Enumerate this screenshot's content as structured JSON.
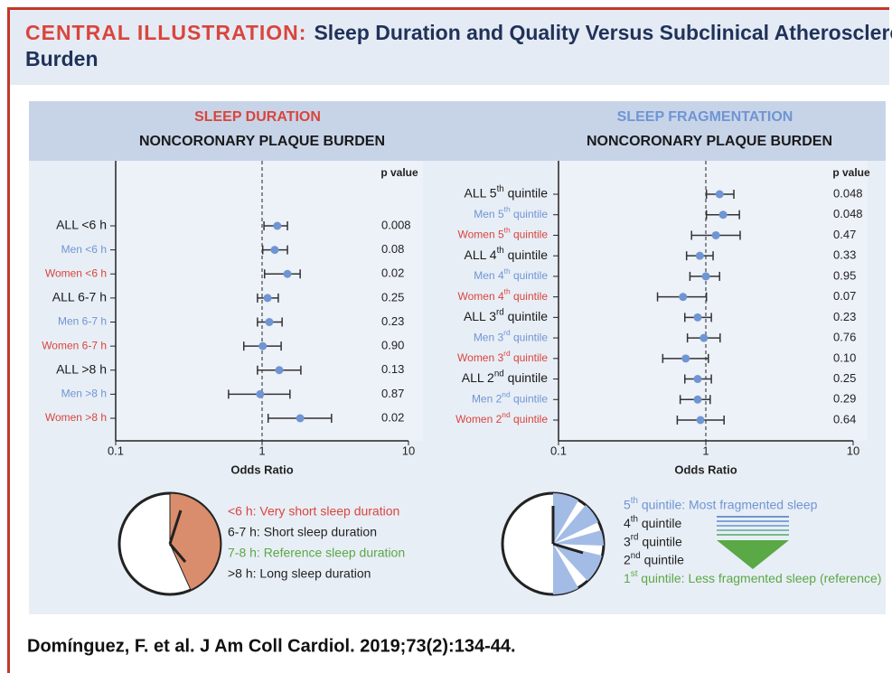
{
  "header": {
    "label": "CENTRAL ILLUSTRATION:",
    "title": "Sleep Duration and Quality Versus Subclinical Atherosclerotic Burden"
  },
  "chart_data": [
    {
      "type": "forest",
      "title": "SLEEP DURATION",
      "subtitle": "NONCORONARY PLAQUE BURDEN",
      "title_color": "#d9453c",
      "categories": [
        "ALL <6 h",
        "Men <6 h",
        "Women <6 h",
        "ALL 6-7 h",
        "Men 6-7 h",
        "Women 6-7 h",
        "ALL >8 h",
        "Men >8 h",
        "Women >8 h"
      ],
      "values": [
        1.27,
        1.22,
        1.49,
        1.09,
        1.12,
        1.01,
        1.31,
        0.97,
        1.82
      ],
      "ci_low": [
        1.03,
        1.01,
        1.04,
        0.93,
        0.93,
        0.75,
        0.93,
        0.59,
        1.1
      ],
      "ci_high": [
        1.49,
        1.49,
        1.82,
        1.29,
        1.37,
        1.35,
        1.84,
        1.55,
        2.98
      ],
      "p_value_title": "p value",
      "p_values": [
        "0.008",
        "0.08",
        "0.02",
        "0.25",
        "0.23",
        "0.90",
        "0.13",
        "0.87",
        "0.02"
      ],
      "xlabel": "Odds Ratio",
      "xscale": "log",
      "xlim": [
        0.1,
        10
      ],
      "xticks": [
        0.1,
        1,
        10
      ],
      "reference_line": 1,
      "color": "#6f95d3",
      "legend": [
        {
          "text": "<6 h: Very short sleep duration",
          "color": "#d9453c"
        },
        {
          "text": "6-7 h: Short sleep duration",
          "color": "#222222"
        },
        {
          "text": "7-8 h: Reference sleep duration",
          "color": "#5aa846"
        },
        {
          "text": ">8 h: Long sleep duration",
          "color": "#222222"
        }
      ]
    },
    {
      "type": "forest",
      "title": "SLEEP FRAGMENTATION",
      "subtitle": "NONCORONARY PLAQUE BURDEN",
      "title_color": "#6f95d3",
      "categories": [
        "ALL 5th quintile",
        "Men 5th quintile",
        "Women 5th quintile",
        "ALL 4th quintile",
        "Men 4th quintile",
        "Women 4th quintile",
        "ALL 3rd quintile",
        "Men 3rd quintile",
        "Women 3rd quintile",
        "ALL 2nd quintile",
        "Men 2nd quintile",
        "Women 2nd quintile"
      ],
      "values": [
        1.24,
        1.31,
        1.17,
        0.91,
        1.0,
        0.7,
        0.88,
        0.97,
        0.73,
        0.88,
        0.88,
        0.92
      ],
      "ci_low": [
        1.01,
        1.01,
        0.8,
        0.74,
        0.78,
        0.47,
        0.72,
        0.75,
        0.51,
        0.72,
        0.67,
        0.64
      ],
      "ci_high": [
        1.55,
        1.69,
        1.71,
        1.12,
        1.24,
        1.01,
        1.09,
        1.25,
        1.04,
        1.09,
        1.07,
        1.33
      ],
      "p_value_title": "p value",
      "p_values": [
        "0.048",
        "0.048",
        "0.47",
        "0.33",
        "0.95",
        "0.07",
        "0.23",
        "0.76",
        "0.10",
        "0.25",
        "0.29",
        "0.64"
      ],
      "xlabel": "Odds Ratio",
      "xscale": "log",
      "xlim": [
        0.1,
        10
      ],
      "xticks": [
        0.1,
        1,
        10
      ],
      "reference_line": 1,
      "color": "#6f95d3",
      "legend": [
        {
          "text": "5th quintile: Most fragmented sleep",
          "color": "#6f95d3"
        },
        {
          "text": "4th quintile",
          "color": "#222222"
        },
        {
          "text": "3rd quintile",
          "color": "#222222"
        },
        {
          "text": "2nd quintile",
          "color": "#222222"
        },
        {
          "text": "1st quintile: Less fragmented sleep (reference)",
          "color": "#5aa846"
        }
      ]
    }
  ],
  "citation": "Domínguez, F. et al. J Am Coll Cardiol. 2019;73(2):134-44."
}
